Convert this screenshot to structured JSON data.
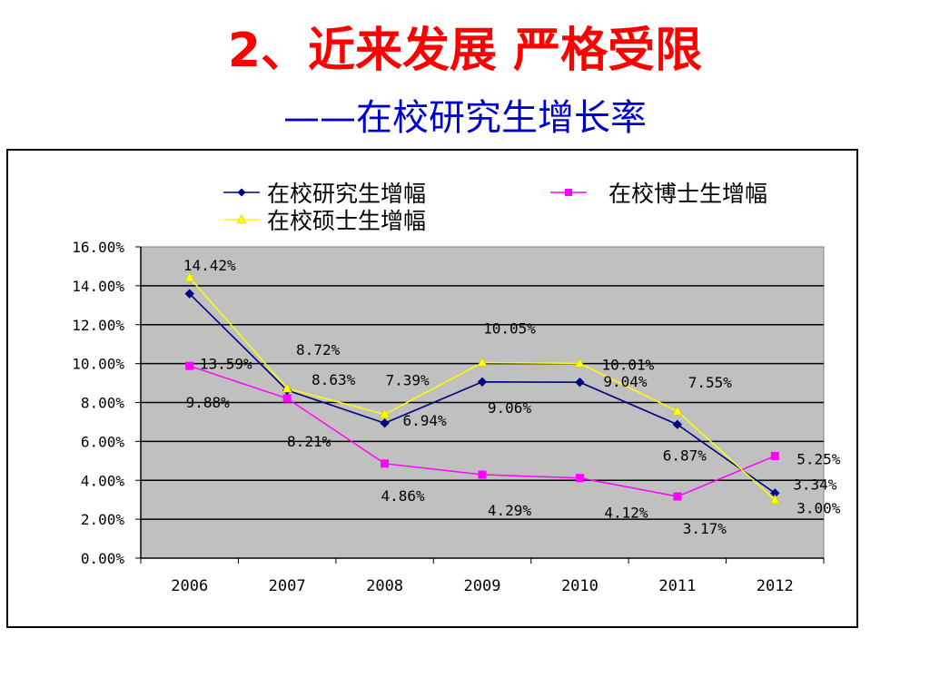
{
  "slide": {
    "title": "2、近来发展  严格受限",
    "subtitle": "——在校研究生增长率"
  },
  "chart_data": {
    "type": "line",
    "categories": [
      "2006",
      "2007",
      "2008",
      "2009",
      "2010",
      "2011",
      "2012"
    ],
    "series": [
      {
        "name": "在校研究生增幅",
        "color": "#000080",
        "marker": "diamond",
        "values": [
          13.59,
          8.63,
          6.94,
          9.06,
          9.04,
          6.87,
          3.34
        ],
        "labels": [
          "13.59%",
          "8.63%",
          "6.94%",
          "9.06%",
          "9.04%",
          "6.87%",
          "3.34%"
        ]
      },
      {
        "name": "在校博士生增幅",
        "color": "#ff00ff",
        "marker": "square",
        "values": [
          9.88,
          8.21,
          4.86,
          4.29,
          4.12,
          3.17,
          5.25
        ],
        "labels": [
          "9.88%",
          "8.21%",
          "4.86%",
          "4.29%",
          "4.12%",
          "3.17%",
          "5.25%"
        ]
      },
      {
        "name": "在校硕士生增幅",
        "color": "#ffff00",
        "marker": "triangle",
        "values": [
          14.42,
          8.72,
          7.39,
          10.05,
          10.01,
          7.55,
          3.0
        ],
        "labels": [
          "14.42%",
          "8.72%",
          "7.39%",
          "10.05%",
          "10.01%",
          "7.55%",
          "3.00%"
        ]
      }
    ],
    "yticks": [
      "16.00%",
      "14.00%",
      "12.00%",
      "10.00%",
      "8.00%",
      "6.00%",
      "4.00%",
      "2.00%",
      "0.00%"
    ],
    "ylim": [
      0,
      16
    ],
    "grid": true,
    "plot_background": "#c0c0c0",
    "legend_position": "top"
  }
}
